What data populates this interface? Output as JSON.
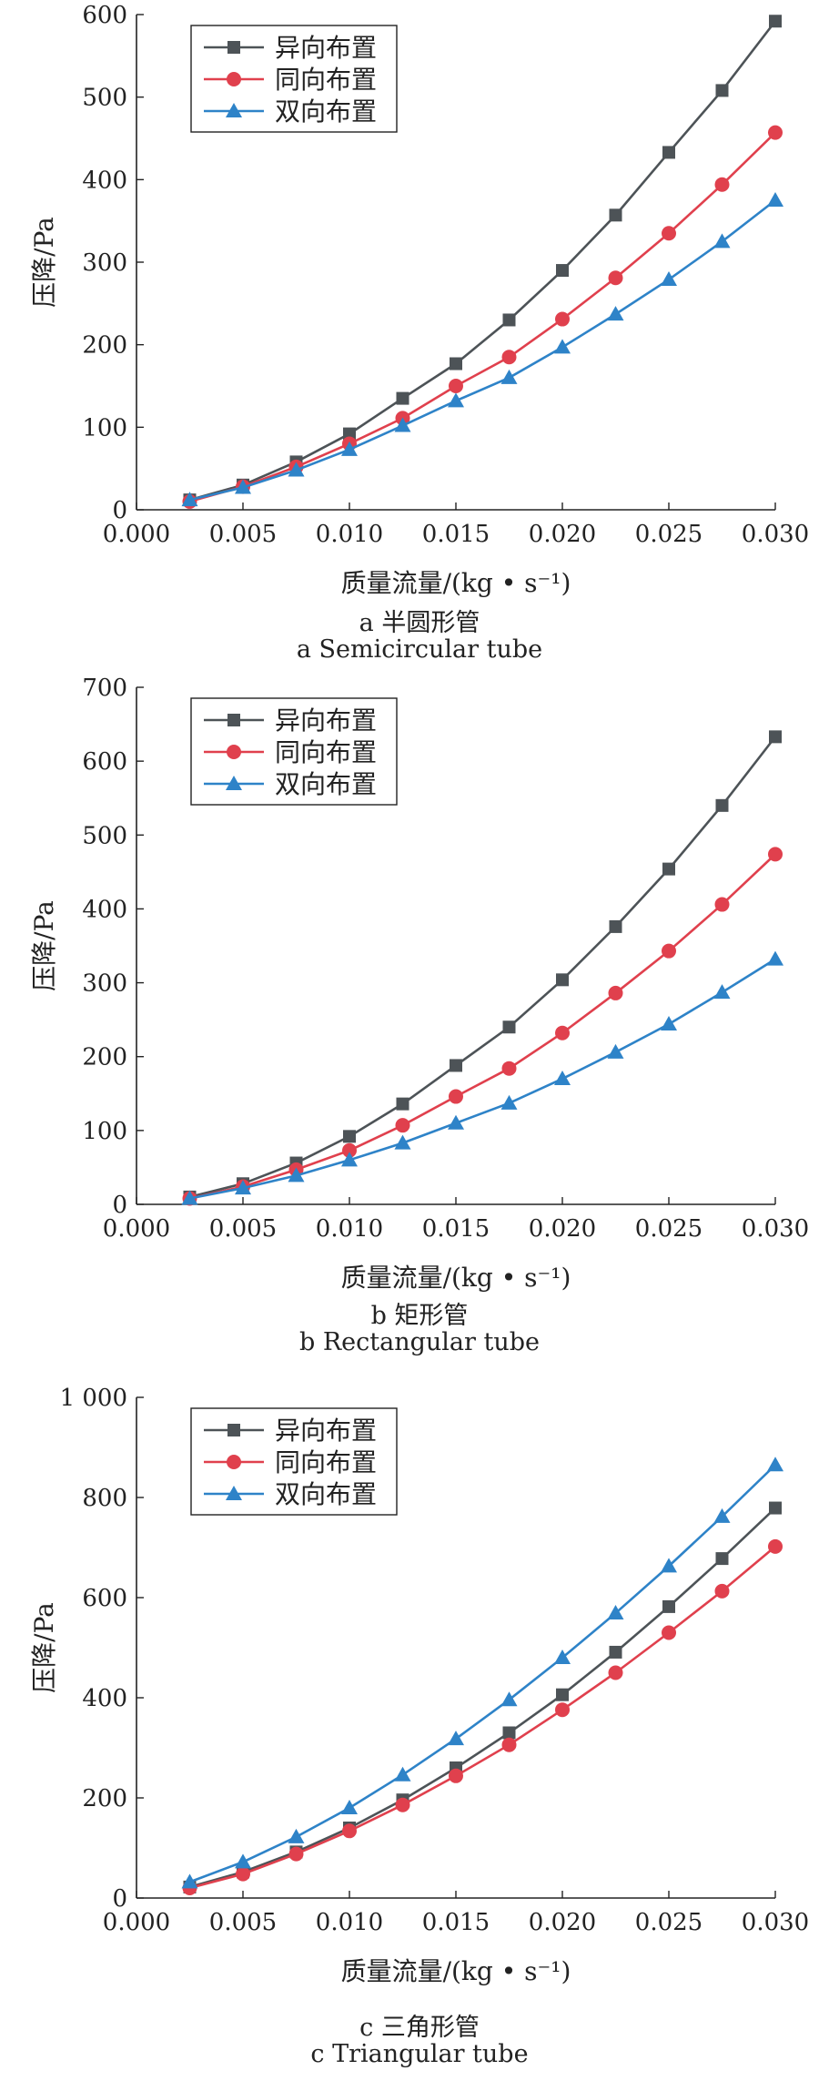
{
  "colors": {
    "series_0": "#4d5357",
    "series_1": "#e0404d",
    "series_2": "#2e83c8"
  },
  "chart_data": [
    {
      "type": "line",
      "caption_cn": "a  半圆形管",
      "caption_en": "a  Semicircular tube",
      "xlabel": "质量流量/(kg • s⁻¹)",
      "ylabel": "压降/Pa",
      "xlim": [
        0,
        0.03
      ],
      "ylim": [
        0,
        600
      ],
      "xticks": [
        "0.000",
        "0.005",
        "0.010",
        "0.015",
        "0.020",
        "0.025",
        "0.030"
      ],
      "yticks": [
        "0",
        "100",
        "200",
        "300",
        "400",
        "500",
        "600"
      ],
      "legend_position": "top-left",
      "x": [
        0.0025,
        0.005,
        0.0075,
        0.01,
        0.0125,
        0.015,
        0.0175,
        0.02,
        0.0225,
        0.025,
        0.0275,
        0.03
      ],
      "series": [
        {
          "name": "异向布置",
          "marker": "square",
          "values": [
            12,
            30,
            58,
            92,
            135,
            177,
            230,
            290,
            357,
            433,
            508,
            592
          ]
        },
        {
          "name": "同向布置",
          "marker": "circle",
          "values": [
            10,
            28,
            52,
            80,
            111,
            150,
            185,
            231,
            281,
            335,
            394,
            457
          ]
        },
        {
          "name": "双向布置",
          "marker": "triangle",
          "values": [
            12,
            27,
            48,
            73,
            102,
            132,
            160,
            197,
            237,
            279,
            325,
            375
          ]
        }
      ]
    },
    {
      "type": "line",
      "caption_cn": "b  矩形管",
      "caption_en": "b  Rectangular tube",
      "xlabel": "质量流量/(kg • s⁻¹)",
      "ylabel": "压降/Pa",
      "xlim": [
        0,
        0.03
      ],
      "ylim": [
        0,
        700
      ],
      "xticks": [
        "0.000",
        "0.005",
        "0.010",
        "0.015",
        "0.020",
        "0.025",
        "0.030"
      ],
      "yticks": [
        "0",
        "100",
        "200",
        "300",
        "400",
        "500",
        "600",
        "700"
      ],
      "legend_position": "top-left",
      "x": [
        0.0025,
        0.005,
        0.0075,
        0.01,
        0.0125,
        0.015,
        0.0175,
        0.02,
        0.0225,
        0.025,
        0.0275,
        0.03
      ],
      "series": [
        {
          "name": "异向布置",
          "marker": "square",
          "values": [
            10,
            28,
            56,
            92,
            136,
            188,
            240,
            304,
            376,
            454,
            540,
            633
          ]
        },
        {
          "name": "同向布置",
          "marker": "circle",
          "values": [
            8,
            24,
            47,
            73,
            107,
            146,
            184,
            232,
            286,
            343,
            406,
            474
          ]
        },
        {
          "name": "双向布置",
          "marker": "triangle",
          "values": [
            8,
            22,
            39,
            60,
            83,
            110,
            137,
            170,
            206,
            244,
            287,
            332
          ]
        }
      ]
    },
    {
      "type": "line",
      "caption_cn": "c  三角形管",
      "caption_en": "c  Triangular tube",
      "xlabel": "质量流量/(kg • s⁻¹)",
      "ylabel": "压降/Pa",
      "xlim": [
        0,
        0.03
      ],
      "ylim": [
        0,
        1000
      ],
      "xticks": [
        "0.000",
        "0.005",
        "0.010",
        "0.015",
        "0.020",
        "0.025",
        "0.030"
      ],
      "yticks": [
        "0",
        "200",
        "400",
        "600",
        "800",
        "1 000"
      ],
      "legend_position": "top-left",
      "x": [
        0.0025,
        0.005,
        0.0075,
        0.01,
        0.0125,
        0.015,
        0.0175,
        0.02,
        0.0225,
        0.025,
        0.0275,
        0.03
      ],
      "series": [
        {
          "name": "异向布置",
          "marker": "square",
          "values": [
            22,
            52,
            92,
            140,
            196,
            260,
            330,
            406,
            491,
            582,
            678,
            779
          ]
        },
        {
          "name": "同向布置",
          "marker": "circle",
          "values": [
            20,
            48,
            88,
            134,
            186,
            244,
            306,
            376,
            450,
            530,
            613,
            702
          ]
        },
        {
          "name": "双向布置",
          "marker": "triangle",
          "values": [
            32,
            72,
            122,
            180,
            246,
            318,
            396,
            480,
            569,
            663,
            762,
            865
          ]
        }
      ]
    }
  ]
}
